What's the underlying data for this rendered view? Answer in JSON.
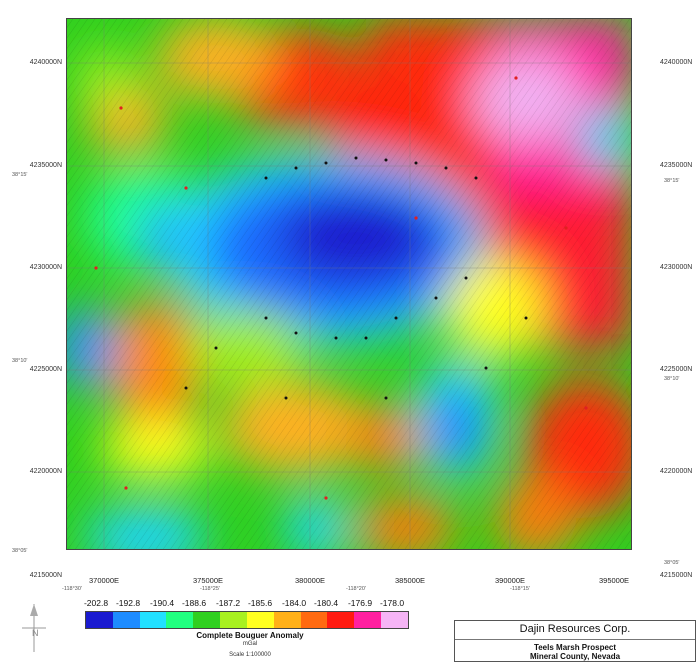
{
  "map": {
    "northing_labels_left": [
      "4240000N",
      "4235000N",
      "4230000N",
      "4225000N",
      "4220000N",
      "4215000N"
    ],
    "northing_labels_right": [
      "4240000N",
      "4235000N",
      "4230000N",
      "4225000N",
      "4220000N",
      "4215000N"
    ],
    "easting_labels": [
      "370000E",
      "375000E",
      "380000E",
      "385000E",
      "390000E",
      "395000E"
    ],
    "latlon_left": [
      "38°15'",
      "38°10'",
      "38°05'"
    ],
    "latlon_right": [
      "38°15'",
      "38°10'",
      "38°05'"
    ],
    "latlon_bottom": [
      "-118°30'",
      "-118°25'",
      "-118°20'",
      "-118°15'"
    ],
    "colormap": {
      "low": "#1a1ad0",
      "high": "#f0a0f0",
      "stops": [
        "#1a1ad0",
        "#1e6cff",
        "#22d4ff",
        "#22ff9a",
        "#22d022",
        "#a0ee22",
        "#ffff22",
        "#ffb020",
        "#ff7a10",
        "#ff2a10",
        "#ff1aa0",
        "#f2b0f2"
      ]
    }
  },
  "legend": {
    "values": [
      "-202.8",
      "-192.8",
      "-190.4",
      "-188.6",
      "-187.2",
      "-185.6",
      "-184.0",
      "-180.4",
      "-176.9",
      "-178.0"
    ],
    "colors": [
      "#1a1ad0",
      "#1e8cff",
      "#22e0ff",
      "#22ff80",
      "#30d020",
      "#a8f020",
      "#ffff20",
      "#ffb018",
      "#ff6a10",
      "#ff1a10",
      "#ff20a0",
      "#f6b4f6"
    ],
    "title": "Complete Bouguer Anomaly",
    "unit": "mGal",
    "scale": "Scale 1:100000"
  },
  "titleblock": {
    "company": "Dajin Resources Corp.",
    "prospect": "Teels Marsh Prospect",
    "county": "Mineral County, Nevada"
  },
  "north_arrow_label": "N"
}
